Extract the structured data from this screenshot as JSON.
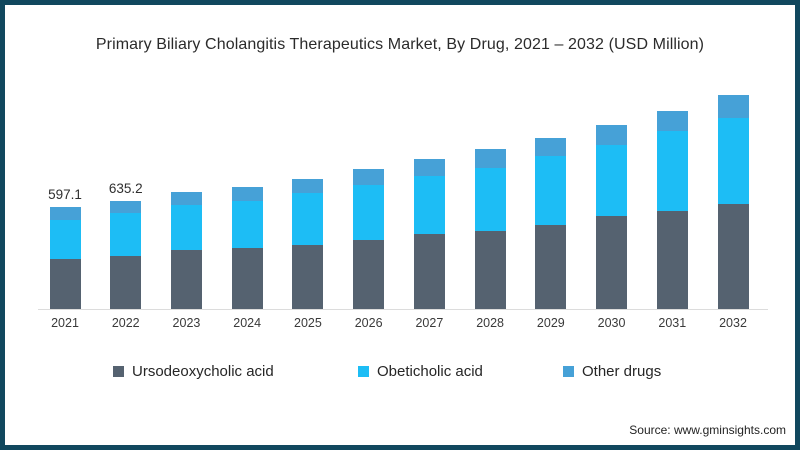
{
  "title": "Primary Biliary Cholangitis Therapeutics Market, By Drug, 2021 – 2032 (USD Million)",
  "source": "Source: www.gminsights.com",
  "colors": {
    "frame": "#11485e",
    "background": "#ffffff",
    "axis_line": "#dcdcdc",
    "title_text": "#2b2b2b",
    "tick_text": "#3a3a3a",
    "data_label_text": "#2f2f2f"
  },
  "chart_data": {
    "type": "bar",
    "stacked": true,
    "title": "Primary Biliary Cholangitis Therapeutics Market, By Drug, 2021 – 2032 (USD Million)",
    "value_unit": "USD Million",
    "categories": [
      "2021",
      "2022",
      "2023",
      "2024",
      "2025",
      "2026",
      "2027",
      "2028",
      "2029",
      "2030",
      "2031",
      "2032"
    ],
    "series": [
      {
        "name": "Ursodeoxycholic acid",
        "color": "#556270",
        "values": [
          295,
          312,
          344,
          357,
          377,
          406,
          441,
          460,
          494,
          547,
          577,
          617
        ]
      },
      {
        "name": "Obeticholic acid",
        "color": "#1dbdf5",
        "values": [
          230,
          251,
          266,
          274,
          304,
          324,
          337,
          367,
          406,
          416,
          466,
          504
        ]
      },
      {
        "name": "Other drugs",
        "color": "#46a1d7",
        "values": [
          72.1,
          72.2,
          74,
          88,
          84,
          92,
          100,
          112,
          106,
          115,
          122,
          137
        ]
      }
    ],
    "totals": [
      597.1,
      635.2,
      684,
      719,
      765,
      822,
      878,
      939,
      1006,
      1078,
      1165,
      1258
    ],
    "data_labels": [
      "597.1",
      "635.2",
      "",
      "",
      "",
      "",
      "",
      "",
      "",
      "",
      "",
      ""
    ],
    "ylim": [
      0,
      1300
    ],
    "grid": false,
    "y_axis_shown": false,
    "legend_position": "bottom"
  }
}
